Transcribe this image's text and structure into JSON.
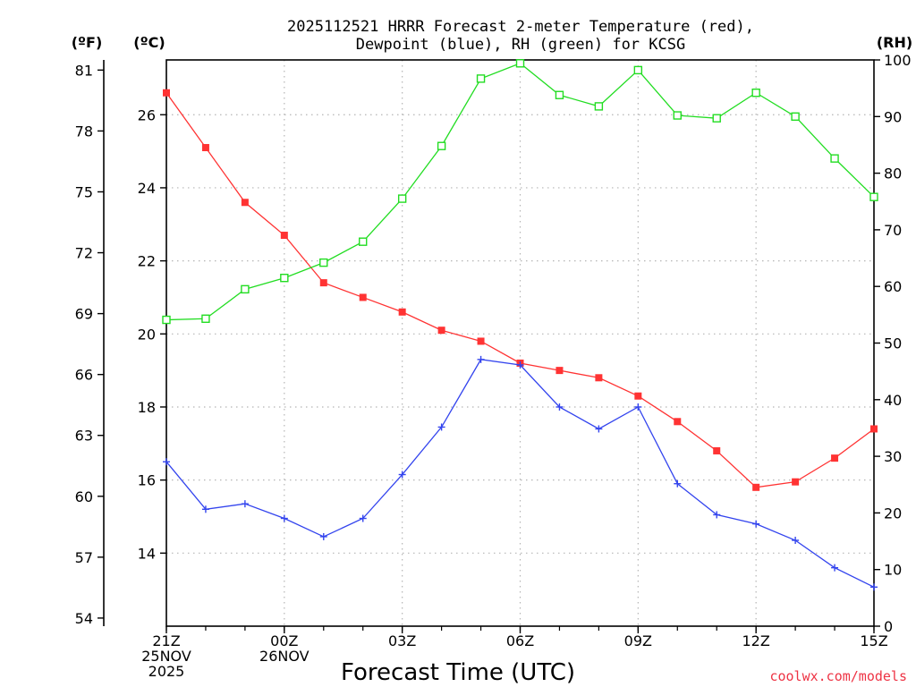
{
  "chart_data": {
    "type": "line",
    "title_line1": "2025112521 HRRR Forecast 2-meter Temperature (red),",
    "title_line2": "Dewpoint (blue), RH (green) for KCSG",
    "xlabel": "Forecast Time (UTC)",
    "credit": "coolwx.com/models",
    "unit_f": "(ºF)",
    "unit_c": "(ºC)",
    "unit_rh": "(RH)",
    "x_hours": [
      0,
      1,
      2,
      3,
      4,
      5,
      6,
      7,
      8,
      9,
      10,
      11,
      12,
      13,
      14,
      15,
      16,
      17,
      18
    ],
    "x_ticks": [
      {
        "hour": 0,
        "lines": [
          "21Z",
          "25NOV",
          "2025"
        ]
      },
      {
        "hour": 3,
        "lines": [
          "00Z",
          "26NOV"
        ]
      },
      {
        "hour": 6,
        "lines": [
          "03Z"
        ]
      },
      {
        "hour": 9,
        "lines": [
          "06Z"
        ]
      },
      {
        "hour": 12,
        "lines": [
          "09Z"
        ]
      },
      {
        "hour": 15,
        "lines": [
          "12Z"
        ]
      },
      {
        "hour": 18,
        "lines": [
          "15Z"
        ]
      }
    ],
    "celsius_axis": {
      "range": [
        12.0,
        27.5
      ],
      "ticks": [
        14,
        16,
        18,
        20,
        22,
        24,
        26
      ]
    },
    "fahrenheit_axis": {
      "ticks": [
        54,
        57,
        60,
        63,
        66,
        69,
        72,
        75,
        78,
        81
      ]
    },
    "rh_axis": {
      "range": [
        0,
        100
      ],
      "ticks": [
        0,
        10,
        20,
        30,
        40,
        50,
        60,
        70,
        80,
        90,
        100
      ]
    },
    "colors": {
      "temperature": "#ff3333",
      "dewpoint": "#3344ee",
      "rh": "#22dd22",
      "credit": "#ee3344"
    },
    "series": [
      {
        "name": "Temperature",
        "unit": "C",
        "values": [
          26.6,
          25.1,
          23.6,
          22.7,
          21.4,
          21.0,
          20.6,
          20.1,
          19.8,
          19.2,
          19.0,
          18.8,
          18.3,
          17.6,
          16.8,
          15.8,
          15.95,
          16.6,
          17.4
        ]
      },
      {
        "name": "Dewpoint",
        "unit": "C",
        "values": [
          16.5,
          15.2,
          15.35,
          14.95,
          14.45,
          14.95,
          16.15,
          17.45,
          19.3,
          19.15,
          18.0,
          17.4,
          18.0,
          15.9,
          15.05,
          14.8,
          14.35,
          13.6,
          13.07
        ]
      },
      {
        "name": "Relative Humidity",
        "unit": "%",
        "values": [
          54.1,
          54.3,
          59.5,
          61.5,
          64.2,
          67.9,
          75.5,
          84.8,
          96.7,
          99.4,
          93.8,
          91.8,
          98.2,
          90.2,
          89.7,
          94.2,
          90.0,
          82.6,
          75.8
        ]
      }
    ]
  }
}
